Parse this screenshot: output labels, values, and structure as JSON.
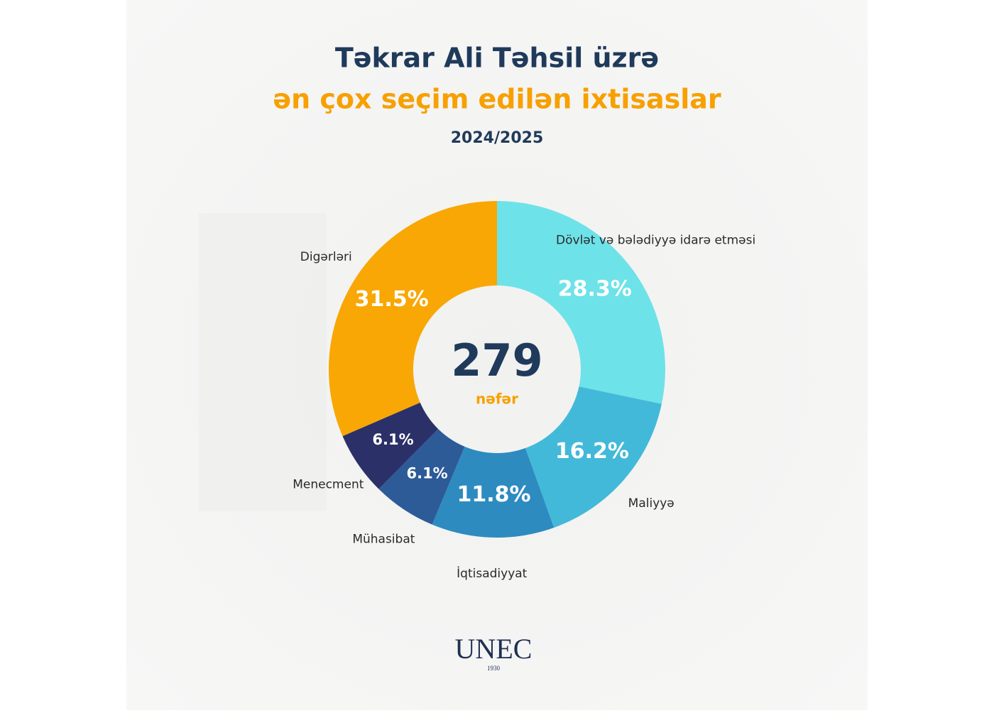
{
  "chart_data": {
    "type": "donut",
    "title": "Təkrar Ali Təhsil üzrə",
    "subtitle": "ən çox seçim edilən ixtisaslar",
    "period": "2024/2025",
    "center_value": 279,
    "center_label": "nəfər",
    "categories": [
      "Dövlət və bələdiyyə idarə etməsi",
      "Maliyyə",
      "İqtisadiyyat",
      "Mühasibat",
      "Menecment",
      "Digərləri"
    ],
    "values": [
      28.3,
      16.2,
      11.8,
      6.1,
      6.1,
      31.5
    ],
    "value_labels": [
      "28.3%",
      "16.2%",
      "11.8%",
      "6.1%",
      "6.1%",
      "31.5%"
    ],
    "colors": [
      "#6ee2e9",
      "#43b9d9",
      "#2d8bc0",
      "#2c5b98",
      "#2b3068",
      "#f9a704"
    ]
  },
  "logo": {
    "text": "UNEC",
    "year": "1930"
  }
}
